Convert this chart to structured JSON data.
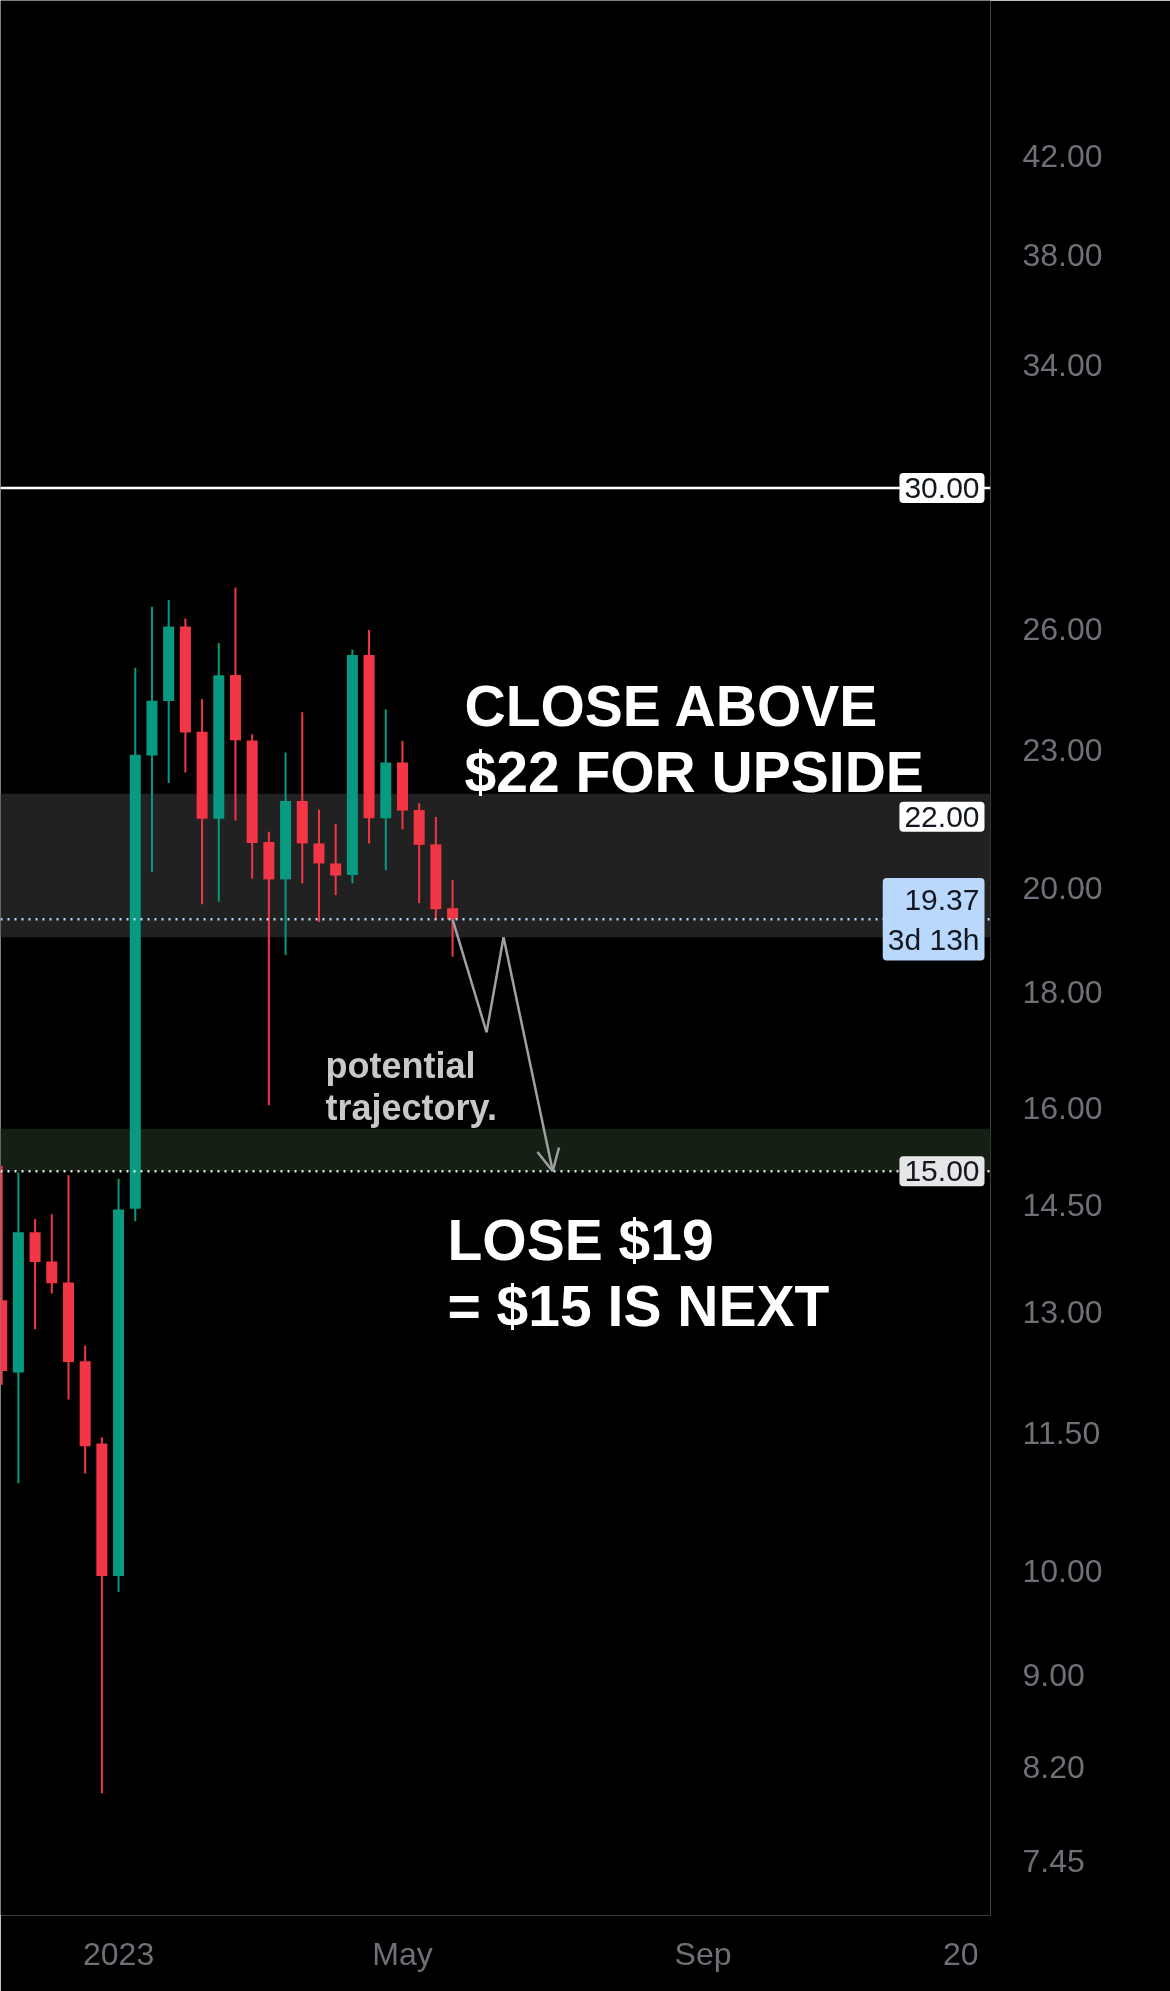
{
  "chart_data": {
    "type": "candlestick",
    "x": [
      "2022-11-14",
      "2022-11-21",
      "2022-11-28",
      "2022-12-05",
      "2022-12-12",
      "2022-12-19",
      "2022-12-26",
      "2023-01-02",
      "2023-01-09",
      "2023-01-16",
      "2023-01-23",
      "2023-01-30",
      "2023-02-06",
      "2023-02-13",
      "2023-02-20",
      "2023-02-27",
      "2023-03-06",
      "2023-03-13",
      "2023-03-20",
      "2023-03-27",
      "2023-04-03",
      "2023-04-10",
      "2023-04-17",
      "2023-04-24",
      "2023-05-01",
      "2023-05-08",
      "2023-05-15",
      "2023-05-22"
    ],
    "ohlc": [
      [
        13.16,
        15.08,
        12.08,
        12.25
      ],
      [
        12.23,
        14.98,
        10.93,
        14.1
      ],
      [
        14.1,
        14.29,
        12.78,
        13.68
      ],
      [
        13.69,
        14.36,
        13.25,
        13.39
      ],
      [
        13.4,
        14.94,
        11.9,
        12.36
      ],
      [
        12.37,
        12.57,
        11.04,
        11.35
      ],
      [
        11.38,
        11.45,
        7.98,
        9.95
      ],
      [
        9.95,
        14.89,
        9.79,
        14.43
      ],
      [
        14.44,
        25.0,
        14.26,
        22.89
      ],
      [
        22.87,
        26.6,
        20.32,
        24.18
      ],
      [
        24.17,
        26.78,
        22.24,
        26.07
      ],
      [
        26.07,
        26.28,
        22.48,
        23.41
      ],
      [
        23.43,
        24.22,
        19.67,
        21.45
      ],
      [
        21.45,
        25.64,
        19.72,
        24.81
      ],
      [
        24.82,
        27.12,
        21.41,
        23.23
      ],
      [
        23.22,
        23.37,
        20.19,
        20.93
      ],
      [
        20.95,
        21.17,
        16.04,
        20.17
      ],
      [
        20.17,
        22.94,
        18.68,
        21.84
      ],
      [
        21.84,
        23.9,
        20.09,
        20.92
      ],
      [
        20.92,
        21.65,
        19.32,
        20.5
      ],
      [
        20.5,
        21.34,
        19.85,
        20.25
      ],
      [
        20.26,
        25.47,
        20.09,
        25.33
      ],
      [
        25.33,
        25.98,
        20.92,
        21.46
      ],
      [
        21.46,
        23.97,
        20.36,
        22.71
      ],
      [
        22.71,
        23.21,
        21.22,
        21.63
      ],
      [
        21.64,
        21.79,
        19.69,
        20.89
      ],
      [
        20.9,
        21.49,
        19.36,
        19.57
      ],
      [
        19.59,
        20.16,
        18.65,
        19.37
      ]
    ],
    "colors": [
      "#f23645",
      "#089981",
      "#f23645",
      "#f23645",
      "#f23645",
      "#f23645",
      "#f23645",
      "#089981",
      "#089981",
      "#089981",
      "#089981",
      "#f23645",
      "#f23645",
      "#089981",
      "#f23645",
      "#f23645",
      "#f23645",
      "#089981",
      "#f23645",
      "#f23645",
      "#f23645",
      "#089981",
      "#f23645",
      "#089981",
      "#f23645",
      "#f23645",
      "#f23645",
      "#f23645"
    ],
    "xlim": [
      "2022-11-13T12:00",
      "2024-01-02T12:00"
    ],
    "xticks": [
      {
        "value": "2023-01-02",
        "label": "2023"
      },
      {
        "value": "2023-05-01",
        "label": "May"
      },
      {
        "value": "2023-09-04",
        "label": "Sep"
      },
      {
        "value": "2023-12-21",
        "label": "20"
      }
    ],
    "log": true,
    "ylim": [
      7.05,
      49.2
    ],
    "yticks": [
      {
        "value": 42,
        "label": "42.00"
      },
      {
        "value": 38,
        "label": "38.00"
      },
      {
        "value": 34,
        "label": "34.00"
      },
      {
        "value": 26,
        "label": "26.00"
      },
      {
        "value": 23,
        "label": "23.00"
      },
      {
        "value": 20,
        "label": "20.00"
      },
      {
        "value": 18,
        "label": "18.00"
      },
      {
        "value": 16,
        "label": "16.00"
      },
      {
        "value": 14.5,
        "label": "14.50"
      },
      {
        "value": 13,
        "label": "13.00"
      },
      {
        "value": 11.5,
        "label": "11.50"
      },
      {
        "value": 10,
        "label": "10.00"
      },
      {
        "value": 9,
        "label": "9.00"
      },
      {
        "value": 8.2,
        "label": "8.20"
      },
      {
        "value": 7.45,
        "label": "7.45"
      }
    ],
    "ref_lines": [
      {
        "axis": "y",
        "value": 30,
        "label": "30.00",
        "color": "#ffffff",
        "line_style": "solid"
      },
      {
        "axis": "y",
        "value": 19.37,
        "label": "19.37\n3d 13h",
        "color": "#b9d8fb",
        "line_style": "dotted"
      },
      {
        "axis": "y",
        "value": 15,
        "label": "15.00",
        "color": "#e6e6e6",
        "line_style": "dotted"
      }
    ],
    "bands": [
      {
        "axis": "y",
        "from": 19.02,
        "to": 22,
        "label": "22.00",
        "color": "#212121"
      },
      {
        "axis": "y",
        "from": 15,
        "to": 15.66,
        "color": "#142014"
      }
    ],
    "annotations": [
      "CLOSE ABOVE\n$22 FOR UPSIDE",
      {
        "text": "LOSE $19\n= $15 IS NEXT",
        "x": "2023-07-03",
        "y": 15
      },
      {
        "text": "potential\ntrajectory.",
        "x": "2023-05-22",
        "y": 19.37
      }
    ]
  }
}
